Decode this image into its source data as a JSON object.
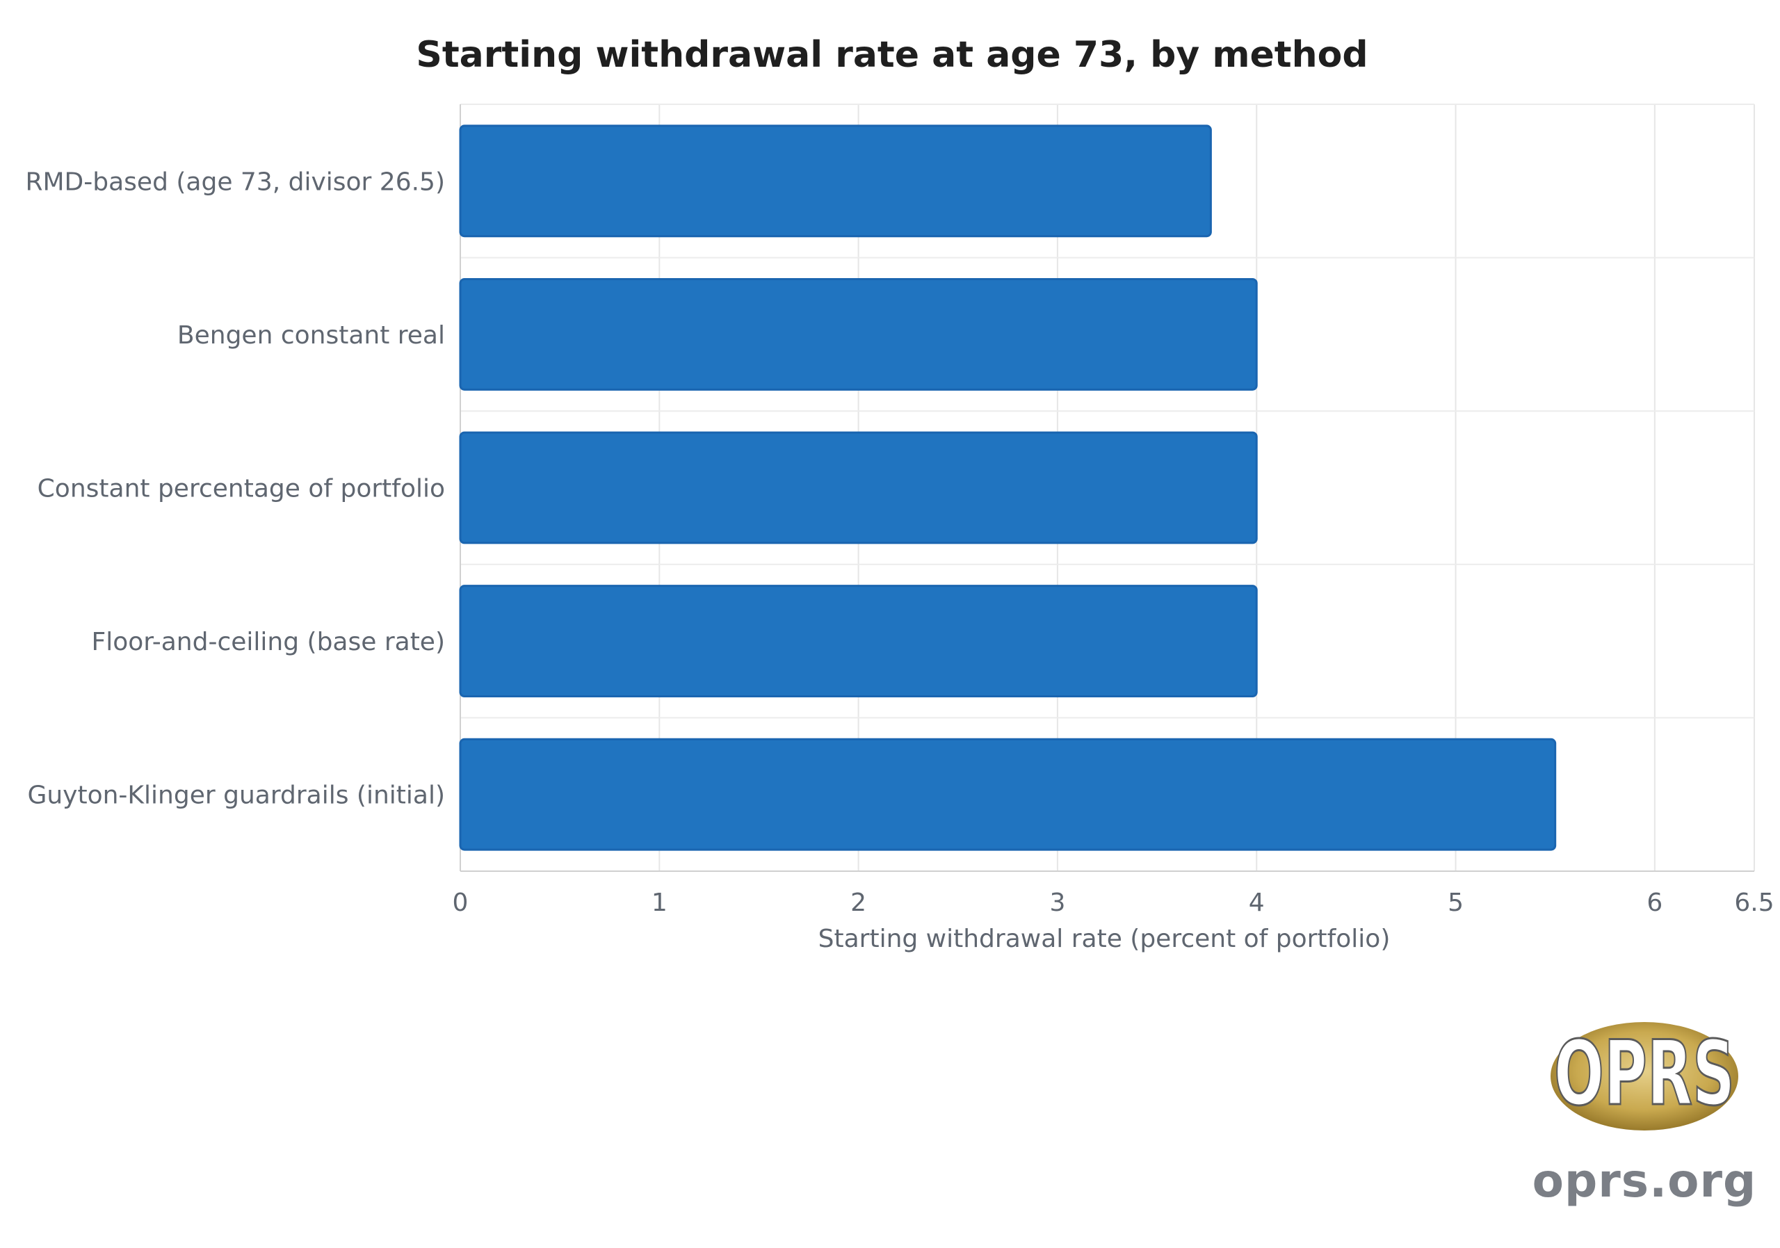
{
  "chart_data": {
    "type": "bar",
    "orientation": "horizontal",
    "title": "Starting withdrawal rate at age 73, by method",
    "xlabel": "Starting withdrawal rate (percent of portfolio)",
    "ylabel": "",
    "categories": [
      "RMD-based (age 73, divisor 26.5)",
      "Bengen constant real",
      "Constant percentage of portfolio",
      "Floor-and-ceiling (base rate)",
      "Guyton-Klinger guardrails (initial)"
    ],
    "values": [
      3.77,
      4.0,
      4.0,
      4.0,
      5.5
    ],
    "xlim": [
      0,
      6.5
    ],
    "xticks": [
      "0",
      "1",
      "2",
      "3",
      "4",
      "5",
      "6",
      "6.5"
    ],
    "grid": true,
    "legend": "none",
    "bar_color": "#2074c0",
    "bar_edge_color": "#1a65b0"
  },
  "logo": {
    "badge_text": "OPRS",
    "url_text": "oprs.org"
  }
}
